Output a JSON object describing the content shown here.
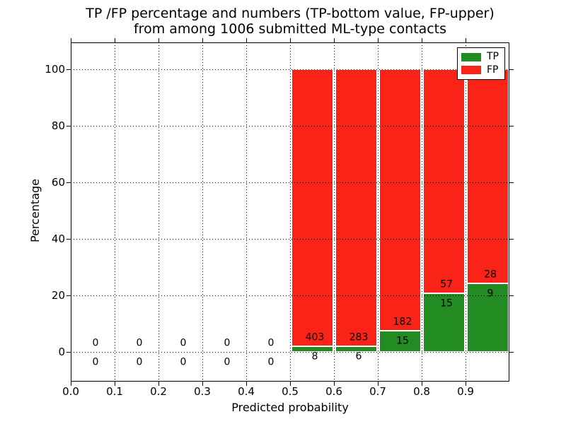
{
  "title": {
    "line1": "TP /FP percentage and numbers (TP-bottom value, FP-upper)",
    "line2": "from among 1006 submitted ML-type contacts"
  },
  "axes": {
    "xlabel": "Predicted probability",
    "ylabel": "Percentage"
  },
  "legend": {
    "position": "upper right",
    "tp_label": "TP",
    "fp_label": "FP"
  },
  "colors": {
    "tp_green": "#228b22",
    "fp_red": "#f92317",
    "grid": "#000000",
    "background": "#ffffff",
    "bar_edge": "#ffffff"
  },
  "chart_data": {
    "type": "bar",
    "stacked": true,
    "title": "TP /FP percentage and numbers (TP-bottom value, FP-upper) from among 1006 submitted ML-type contacts",
    "xlabel": "Predicted probability",
    "ylabel": "Percentage",
    "xlim": [
      0.0,
      1.0
    ],
    "ylim": [
      -10.5,
      109.5
    ],
    "x_ticks": [
      "0.0",
      "0.1",
      "0.2",
      "0.3",
      "0.4",
      "0.5",
      "0.6",
      "0.7",
      "0.8",
      "0.9"
    ],
    "y_ticks": [
      0,
      20,
      40,
      60,
      80,
      100
    ],
    "grid": "dotted",
    "legend_position": "upper right",
    "total_contacts": 1006,
    "bin_width": 0.1,
    "categories": [
      "0.0-0.1",
      "0.1-0.2",
      "0.2-0.3",
      "0.3-0.4",
      "0.4-0.5",
      "0.5-0.6",
      "0.6-0.7",
      "0.7-0.8",
      "0.8-0.9",
      "0.9-1.0"
    ],
    "series": [
      {
        "name": "TP",
        "color": "#228b22",
        "counts": [
          0,
          0,
          0,
          0,
          0,
          8,
          6,
          15,
          15,
          9
        ],
        "pct": [
          0,
          0,
          0,
          0,
          0,
          1.95,
          2.08,
          7.61,
          20.83,
          24.32
        ]
      },
      {
        "name": "FP",
        "color": "#f92317",
        "counts": [
          0,
          0,
          0,
          0,
          0,
          403,
          283,
          182,
          57,
          28
        ],
        "pct": [
          0,
          0,
          0,
          0,
          0,
          98.05,
          97.92,
          92.39,
          79.17,
          75.68
        ]
      }
    ],
    "bins": [
      {
        "range": "0.0-0.1",
        "x0": 0.0,
        "tp_count": 0,
        "fp_count": 0,
        "tp_pct": 0,
        "fp_pct": 0
      },
      {
        "range": "0.1-0.2",
        "x0": 0.1,
        "tp_count": 0,
        "fp_count": 0,
        "tp_pct": 0,
        "fp_pct": 0
      },
      {
        "range": "0.2-0.3",
        "x0": 0.2,
        "tp_count": 0,
        "fp_count": 0,
        "tp_pct": 0,
        "fp_pct": 0
      },
      {
        "range": "0.3-0.4",
        "x0": 0.3,
        "tp_count": 0,
        "fp_count": 0,
        "tp_pct": 0,
        "fp_pct": 0
      },
      {
        "range": "0.4-0.5",
        "x0": 0.4,
        "tp_count": 0,
        "fp_count": 0,
        "tp_pct": 0,
        "fp_pct": 0
      },
      {
        "range": "0.5-0.6",
        "x0": 0.5,
        "tp_count": 8,
        "fp_count": 403,
        "tp_pct": 1.95,
        "fp_pct": 98.05
      },
      {
        "range": "0.6-0.7",
        "x0": 0.6,
        "tp_count": 6,
        "fp_count": 283,
        "tp_pct": 2.08,
        "fp_pct": 97.92
      },
      {
        "range": "0.7-0.8",
        "x0": 0.7,
        "tp_count": 15,
        "fp_count": 182,
        "tp_pct": 7.61,
        "fp_pct": 92.39
      },
      {
        "range": "0.8-0.9",
        "x0": 0.8,
        "tp_count": 15,
        "fp_count": 57,
        "tp_pct": 20.83,
        "fp_pct": 79.17
      },
      {
        "range": "0.9-1.0",
        "x0": 0.9,
        "tp_count": 9,
        "fp_count": 28,
        "tp_pct": 24.32,
        "fp_pct": 75.68
      }
    ]
  }
}
